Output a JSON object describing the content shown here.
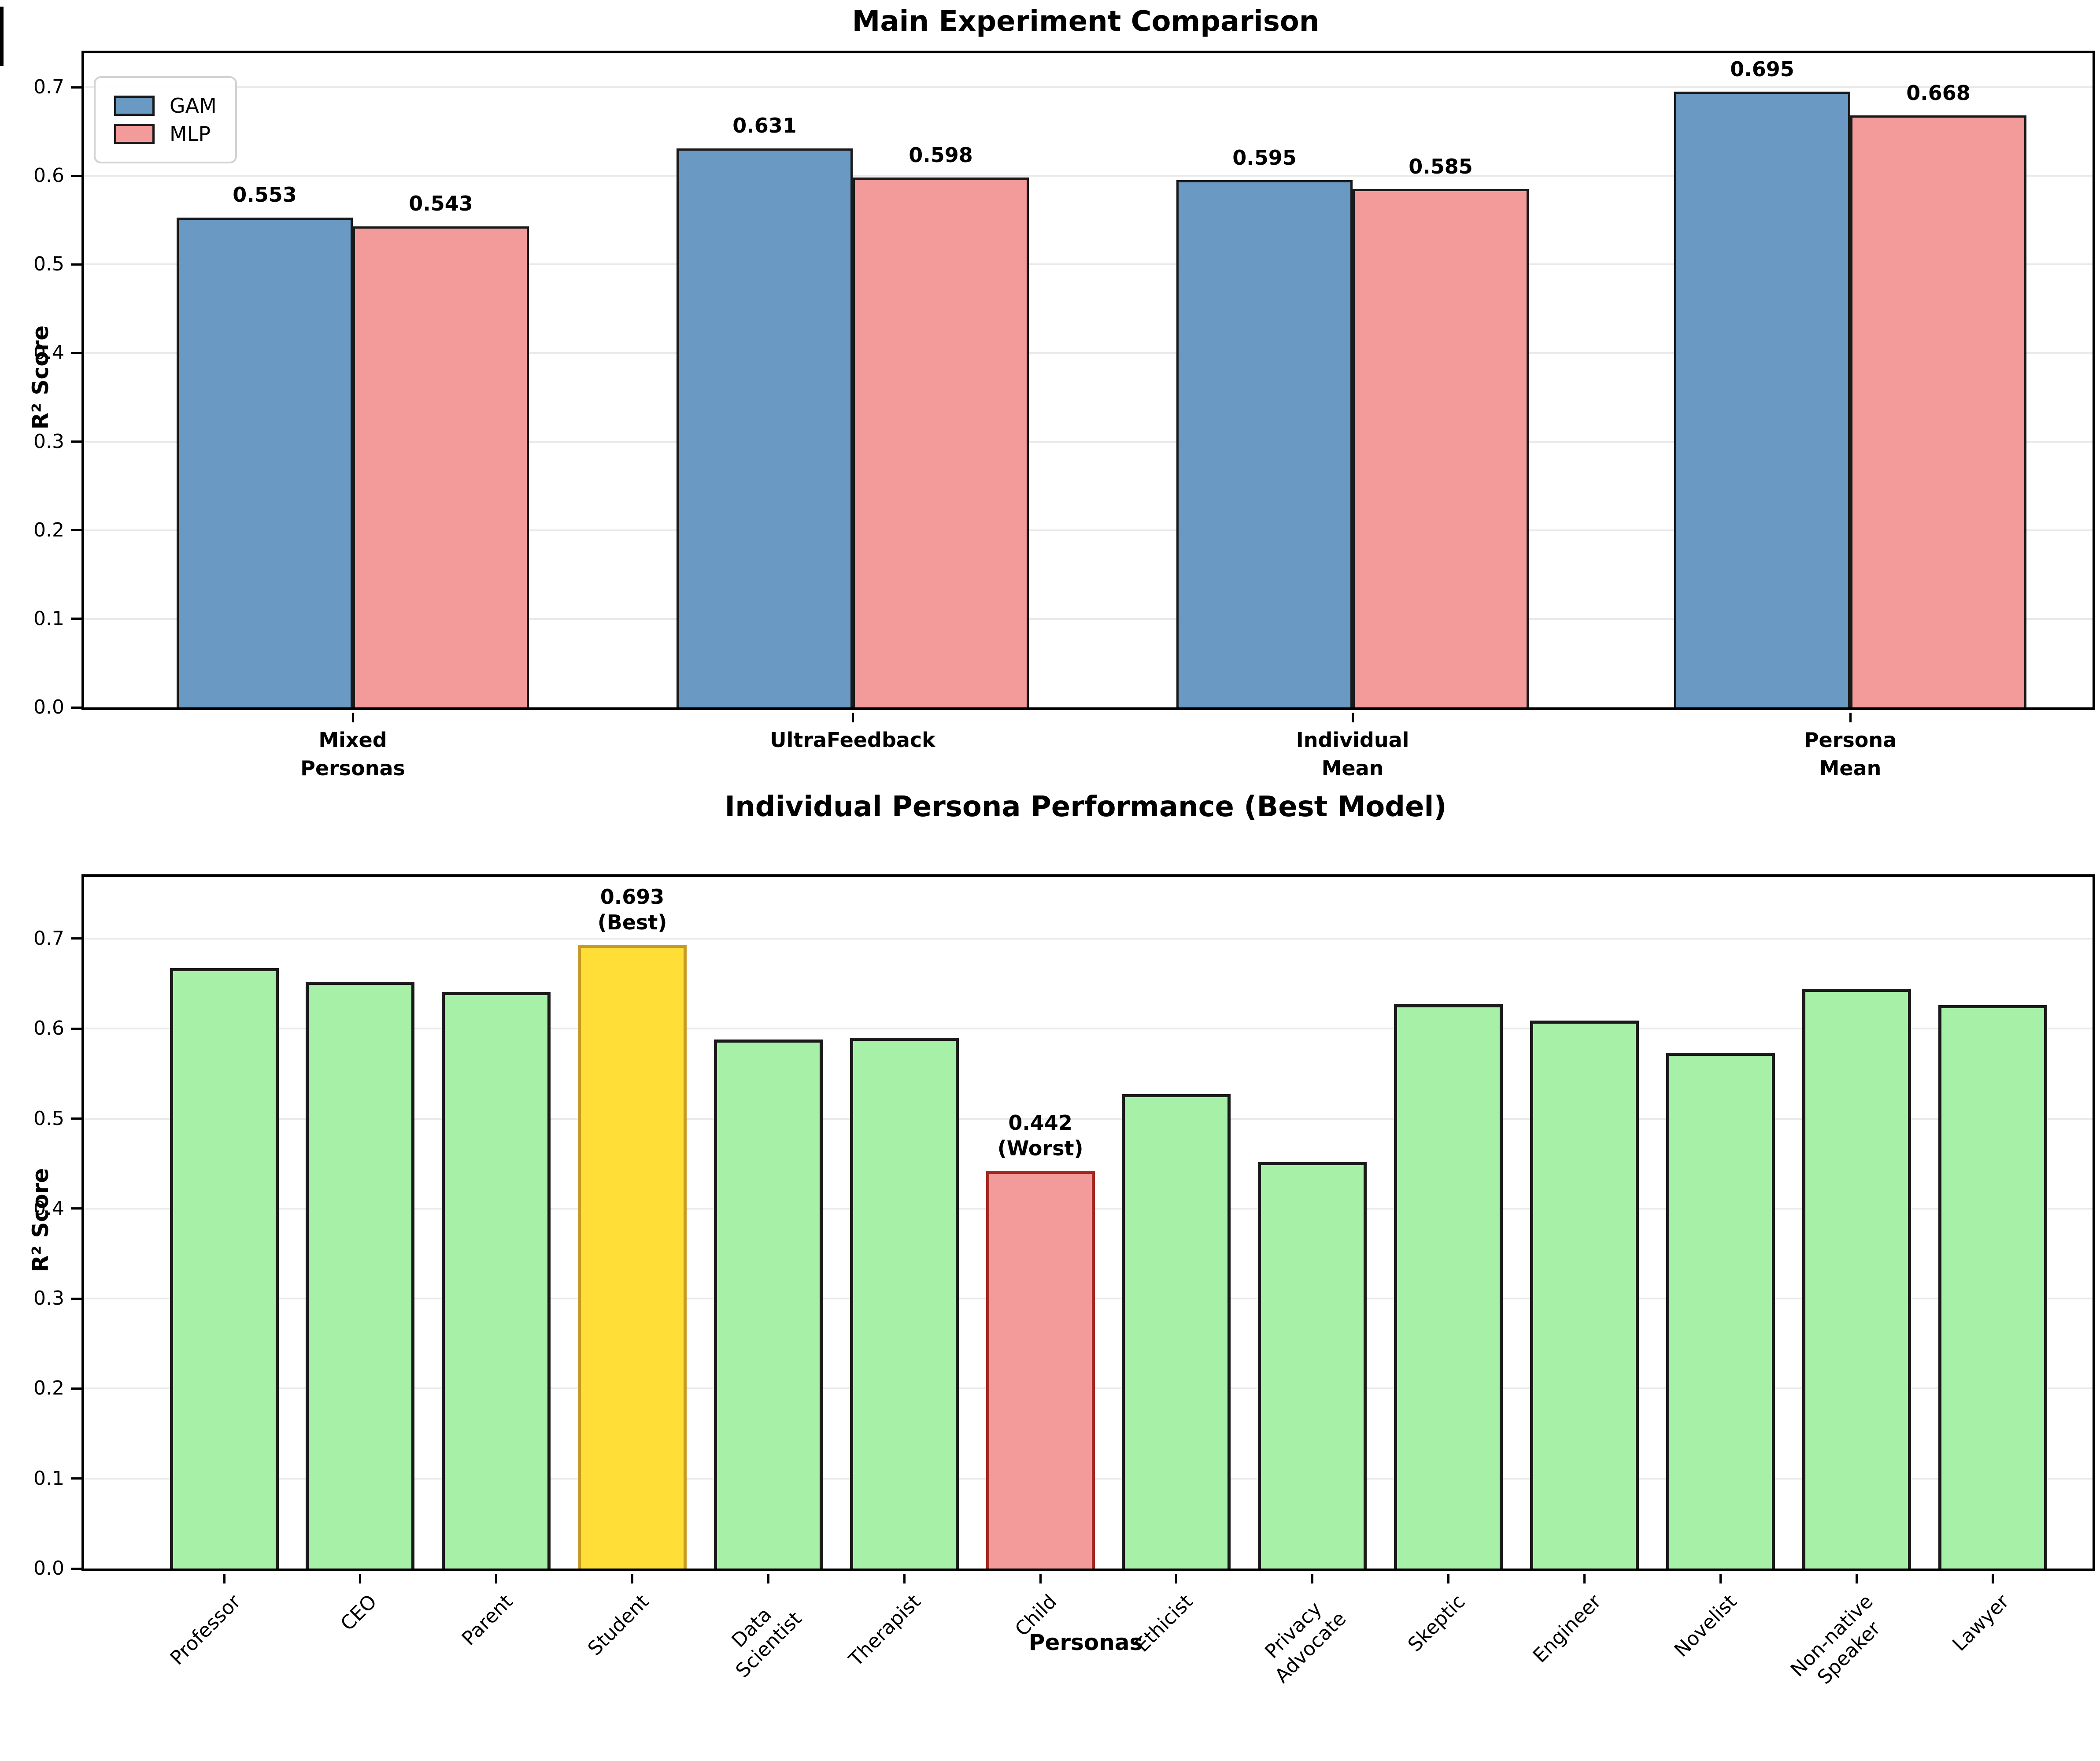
{
  "chart_data": [
    {
      "type": "bar",
      "title": "Main Experiment Comparison",
      "ylabel": "R² Score",
      "xlabel": "",
      "ylim": [
        0,
        0.74
      ],
      "grid": true,
      "legend_position": "upper left",
      "yticks": [
        "0.0",
        "0.1",
        "0.2",
        "0.3",
        "0.4",
        "0.5",
        "0.6",
        "0.7"
      ],
      "categories": [
        "Mixed\nPersonas",
        "UltraFeedback",
        "Individual\nMean",
        "Persona\nMean"
      ],
      "series": [
        {
          "name": "GAM",
          "color": "#6A9AC4",
          "edge_color": "#1A1A1A",
          "values": [
            0.553,
            0.631,
            0.595,
            0.695
          ]
        },
        {
          "name": "MLP",
          "color": "#F39A9A",
          "edge_color": "#1A1A1A",
          "values": [
            0.543,
            0.598,
            0.585,
            0.668
          ]
        }
      ]
    },
    {
      "type": "bar",
      "title": "Individual Persona Performance (Best Model)",
      "ylabel": "R² Score",
      "xlabel": "Personas",
      "ylim": [
        0,
        0.77
      ],
      "grid": true,
      "yticks": [
        "0.0",
        "0.1",
        "0.2",
        "0.3",
        "0.4",
        "0.5",
        "0.6",
        "0.7"
      ],
      "categories": [
        "Professor",
        "CEO",
        "Parent",
        "Student",
        "Data\nScientist",
        "Therapist",
        "Child",
        "Ethicist",
        "Privacy\nAdvocate",
        "Skeptic",
        "Engineer",
        "Novelist",
        "Non-native\nSpeaker",
        "Lawyer"
      ],
      "values": [
        0.667,
        0.652,
        0.641,
        0.693,
        0.588,
        0.59,
        0.442,
        0.527,
        0.452,
        0.627,
        0.609,
        0.573,
        0.644,
        0.626
      ],
      "bar_color": "#A7F0A7",
      "bar_edge_color": "#1A1A1A",
      "highlights": {
        "best": {
          "index": 3,
          "fill": "#FFDE37",
          "edge": "#C69A25",
          "annotation": "0.693\n(Best)"
        },
        "worst": {
          "index": 6,
          "fill": "#F39A9A",
          "edge": "#A32822",
          "annotation": "0.442\n(Worst)"
        }
      }
    }
  ]
}
